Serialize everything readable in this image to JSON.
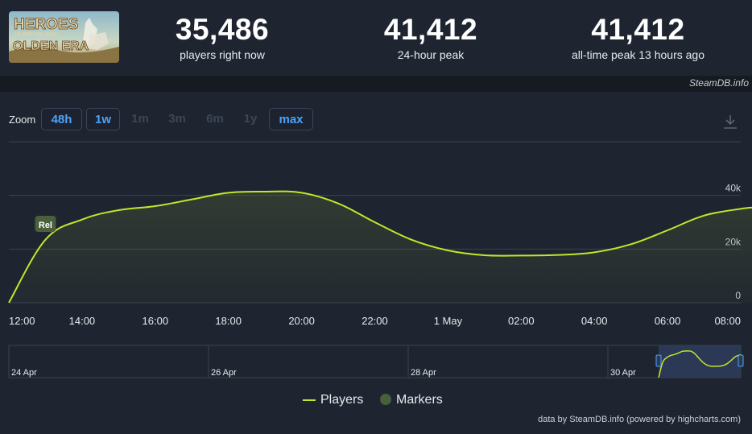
{
  "header": {
    "logo_alt": "Heroes of Might and Magic: Olden Era",
    "stats": [
      {
        "value": "35,486",
        "label": "players right now"
      },
      {
        "value": "41,412",
        "label": "24-hour peak"
      },
      {
        "value": "41,412",
        "label": "all-time peak 13 hours ago"
      }
    ]
  },
  "brand": "SteamDB.info",
  "zoom": {
    "label": "Zoom",
    "buttons": [
      {
        "label": "48h",
        "active": true
      },
      {
        "label": "1w",
        "active": true
      },
      {
        "label": "1m",
        "active": false
      },
      {
        "label": "3m",
        "active": false
      },
      {
        "label": "6m",
        "active": false
      },
      {
        "label": "1y",
        "active": false
      },
      {
        "label": "max",
        "active": true
      }
    ]
  },
  "marker_label": "Rel",
  "legend": {
    "players": "Players",
    "markers": "Markers"
  },
  "credit": "data by SteamDB.info (powered by highcharts.com)",
  "colors": {
    "line": "#c4e52a",
    "grid": "#3a4250",
    "marker_bg": "#4a5f3b",
    "navigator_sel": "#2e3d60",
    "active_blue": "#4fa3f7"
  },
  "chart_data": {
    "type": "line",
    "series": [
      {
        "name": "Players",
        "x": [
          "12:00",
          "13:00",
          "14:00",
          "15:00",
          "16:00",
          "17:00",
          "18:00",
          "19:00",
          "20:00",
          "21:00",
          "22:00",
          "23:00",
          "00:00",
          "01:00",
          "02:00",
          "03:00",
          "04:00",
          "05:00",
          "06:00",
          "07:00",
          "08:00",
          "08:20"
        ],
        "values": [
          0,
          23500,
          31000,
          34500,
          36000,
          38500,
          41000,
          41412,
          41000,
          37000,
          30000,
          23500,
          19500,
          17700,
          17600,
          17800,
          18800,
          21800,
          27000,
          32500,
          35000,
          35486
        ]
      }
    ],
    "x_ticks": [
      "12:00",
      "14:00",
      "16:00",
      "18:00",
      "20:00",
      "22:00",
      "1 May",
      "02:00",
      "04:00",
      "06:00",
      "08:00"
    ],
    "y_ticks": [
      "0",
      "20k",
      "40k"
    ],
    "ylim": [
      0,
      60000
    ],
    "markers": [
      {
        "x": "13:00",
        "label": "Rel"
      }
    ],
    "navigator": {
      "ticks": [
        "24 Apr",
        "26 Apr",
        "28 Apr",
        "30 Apr"
      ]
    }
  }
}
